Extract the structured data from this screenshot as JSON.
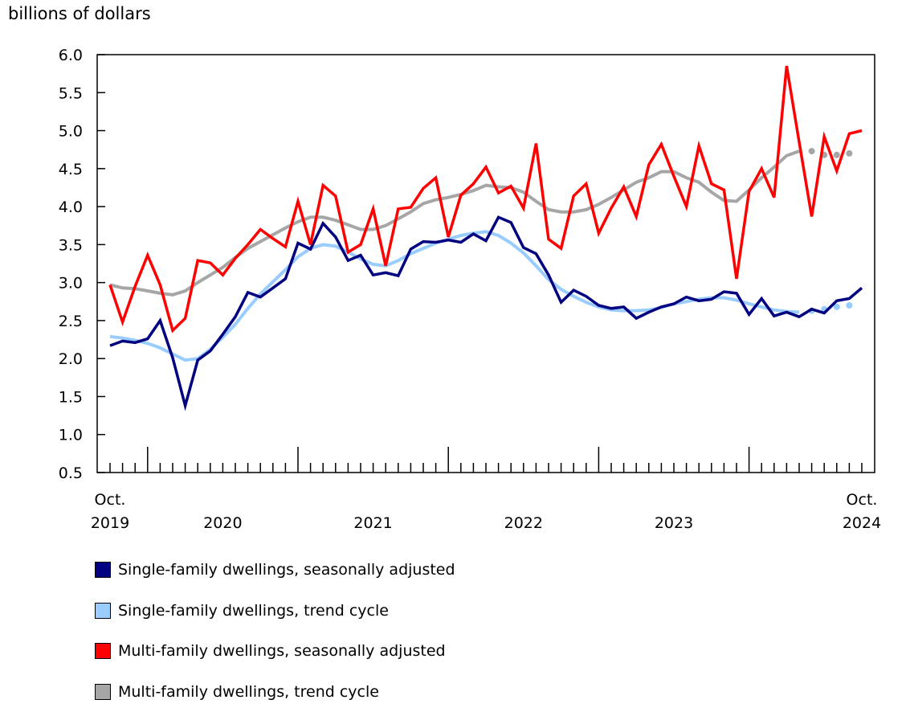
{
  "chart_data": {
    "type": "line",
    "ylabel": "billions of dollars",
    "ylim": [
      0.5,
      6.0
    ],
    "yticks": [
      "0.5",
      "1.0",
      "1.5",
      "2.0",
      "2.5",
      "3.0",
      "3.5",
      "4.0",
      "4.5",
      "5.0",
      "5.5",
      "6.0"
    ],
    "x_start": "2019-10",
    "x_end": "2024-10",
    "xtick_labels": [
      {
        "line1": "Oct.",
        "line2": "2019"
      },
      {
        "line1": "",
        "line2": "2020"
      },
      {
        "line1": "",
        "line2": "2021"
      },
      {
        "line1": "",
        "line2": "2022"
      },
      {
        "line1": "",
        "line2": "2023"
      },
      {
        "line1": "Oct.",
        "line2": "2024"
      }
    ],
    "grid": false,
    "legend_position": "bottom",
    "series": [
      {
        "name": "Single-family dwellings, seasonally adjusted",
        "color": "#000080",
        "values": [
          2.17,
          2.23,
          2.21,
          2.26,
          2.5,
          2.01,
          1.38,
          1.98,
          2.1,
          2.32,
          2.55,
          2.87,
          2.81,
          2.93,
          3.05,
          3.52,
          3.44,
          3.78,
          3.6,
          3.29,
          3.36,
          3.1,
          3.13,
          3.09,
          3.44,
          3.54,
          3.53,
          3.56,
          3.53,
          3.64,
          3.55,
          3.86,
          3.79,
          3.46,
          3.38,
          3.1,
          2.74,
          2.9,
          2.82,
          2.7,
          2.66,
          2.68,
          2.53,
          2.61,
          2.68,
          2.72,
          2.81,
          2.76,
          2.78,
          2.88,
          2.86,
          2.58,
          2.79,
          2.56,
          2.61,
          2.55,
          2.65,
          2.6,
          2.76,
          2.79,
          2.93
        ]
      },
      {
        "name": "Single-family dwellings, trend cycle",
        "color": "#99ccff",
        "values": [
          2.29,
          2.27,
          2.24,
          2.2,
          2.14,
          2.06,
          1.98,
          2.0,
          2.12,
          2.28,
          2.45,
          2.66,
          2.85,
          3.01,
          3.17,
          3.34,
          3.45,
          3.5,
          3.48,
          3.4,
          3.31,
          3.24,
          3.22,
          3.29,
          3.38,
          3.45,
          3.52,
          3.57,
          3.62,
          3.65,
          3.67,
          3.62,
          3.52,
          3.39,
          3.22,
          3.04,
          2.91,
          2.82,
          2.74,
          2.68,
          2.64,
          2.63,
          2.63,
          2.64,
          2.67,
          2.72,
          2.75,
          2.78,
          2.8,
          2.8,
          2.77,
          2.72,
          2.68,
          2.64,
          2.62,
          2.61,
          null,
          null,
          null,
          null,
          null
        ],
        "dotted_values": [
          null,
          null,
          null,
          null,
          null,
          null,
          null,
          null,
          null,
          null,
          null,
          null,
          null,
          null,
          null,
          null,
          null,
          null,
          null,
          null,
          null,
          null,
          null,
          null,
          null,
          null,
          null,
          null,
          null,
          null,
          null,
          null,
          null,
          null,
          null,
          null,
          null,
          null,
          null,
          null,
          null,
          null,
          null,
          null,
          null,
          null,
          null,
          null,
          null,
          null,
          null,
          null,
          null,
          null,
          null,
          null,
          2.63,
          2.65,
          2.68,
          2.7,
          null
        ]
      },
      {
        "name": "Multi-family dwellings, seasonally adjusted",
        "color": "#ff0000",
        "values": [
          2.97,
          2.48,
          2.95,
          3.36,
          2.97,
          2.37,
          2.53,
          3.29,
          3.26,
          3.1,
          3.32,
          3.5,
          3.7,
          3.58,
          3.47,
          4.07,
          3.5,
          4.28,
          4.14,
          3.4,
          3.5,
          3.97,
          3.22,
          3.97,
          3.99,
          4.24,
          4.38,
          3.6,
          4.15,
          4.3,
          4.52,
          4.18,
          4.27,
          3.98,
          4.83,
          3.57,
          3.45,
          4.14,
          4.3,
          3.65,
          3.98,
          4.26,
          3.87,
          4.55,
          4.82,
          4.4,
          4.0,
          4.8,
          4.3,
          4.22,
          3.05,
          4.2,
          4.5,
          4.12,
          5.85,
          4.85,
          3.87,
          4.92,
          4.47,
          4.96,
          5.0
        ]
      },
      {
        "name": "Multi-family dwellings, trend cycle",
        "color": "#a6a6a6",
        "values": [
          2.97,
          2.93,
          2.92,
          2.89,
          2.86,
          2.84,
          2.89,
          3.0,
          3.1,
          3.2,
          3.33,
          3.45,
          3.54,
          3.63,
          3.72,
          3.8,
          3.86,
          3.86,
          3.82,
          3.76,
          3.7,
          3.7,
          3.75,
          3.84,
          3.93,
          4.04,
          4.09,
          4.12,
          4.16,
          4.21,
          4.28,
          4.26,
          4.25,
          4.19,
          4.07,
          3.96,
          3.93,
          3.93,
          3.96,
          4.03,
          4.12,
          4.22,
          4.32,
          4.38,
          4.46,
          4.46,
          4.38,
          4.32,
          4.19,
          4.08,
          4.07,
          4.22,
          4.38,
          4.52,
          4.67,
          4.73,
          null,
          null,
          null,
          null,
          null
        ],
        "dotted_values": [
          null,
          null,
          null,
          null,
          null,
          null,
          null,
          null,
          null,
          null,
          null,
          null,
          null,
          null,
          null,
          null,
          null,
          null,
          null,
          null,
          null,
          null,
          null,
          null,
          null,
          null,
          null,
          null,
          null,
          null,
          null,
          null,
          null,
          null,
          null,
          null,
          null,
          null,
          null,
          null,
          null,
          null,
          null,
          null,
          null,
          null,
          null,
          null,
          null,
          null,
          null,
          null,
          null,
          null,
          null,
          null,
          4.73,
          4.68,
          4.68,
          4.7,
          null
        ]
      }
    ]
  }
}
